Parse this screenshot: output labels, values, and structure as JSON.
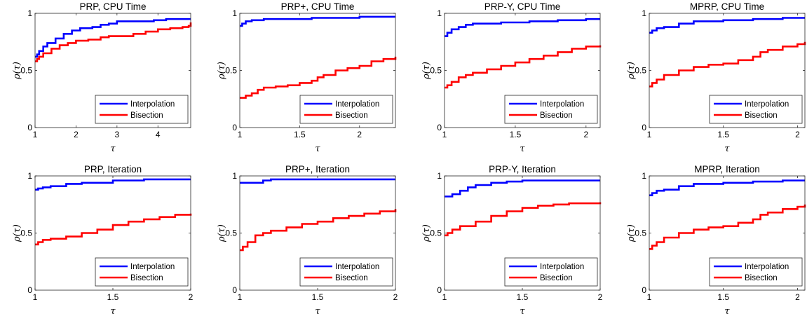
{
  "chart_data": [
    {
      "type": "line",
      "title": "PRP, CPU Time",
      "xlabel": "τ",
      "ylabel": "ρ(τ)",
      "xlim": [
        1,
        4.8
      ],
      "ylim": [
        0,
        1
      ],
      "xticks": [
        1,
        2,
        3,
        4
      ],
      "xtick_labels": [
        "1",
        "2",
        "3",
        "4"
      ],
      "yticks": [
        0,
        0.5,
        1
      ],
      "ytick_labels": [
        "0",
        "0.5",
        "1"
      ],
      "legend_position": "bottom-right",
      "series": [
        {
          "name": "Interpolation",
          "color": "#0000ff",
          "x": [
            1,
            1.05,
            1.1,
            1.2,
            1.3,
            1.5,
            1.7,
            1.9,
            2.1,
            2.4,
            2.6,
            2.8,
            3.0,
            3.5,
            3.9,
            4.2,
            4.5,
            4.8
          ],
          "y": [
            0.62,
            0.64,
            0.67,
            0.71,
            0.74,
            0.78,
            0.82,
            0.85,
            0.87,
            0.88,
            0.9,
            0.91,
            0.93,
            0.93,
            0.94,
            0.95,
            0.95,
            0.95
          ]
        },
        {
          "name": "Bisection",
          "color": "#ff0000",
          "x": [
            1,
            1.05,
            1.1,
            1.2,
            1.4,
            1.6,
            1.8,
            2.0,
            2.3,
            2.6,
            2.8,
            3.0,
            3.4,
            3.7,
            4.0,
            4.3,
            4.6,
            4.75,
            4.8
          ],
          "y": [
            0.58,
            0.6,
            0.62,
            0.65,
            0.69,
            0.72,
            0.74,
            0.76,
            0.77,
            0.79,
            0.8,
            0.8,
            0.82,
            0.84,
            0.86,
            0.87,
            0.88,
            0.89,
            0.92
          ]
        }
      ]
    },
    {
      "type": "line",
      "title": "PRP+, CPU Time",
      "xlabel": "τ",
      "ylabel": "ρ(τ)",
      "xlim": [
        1,
        2.3
      ],
      "ylim": [
        0,
        1
      ],
      "xticks": [
        1,
        1.5,
        2
      ],
      "xtick_labels": [
        "1",
        "1.5",
        "2"
      ],
      "yticks": [
        0,
        0.5,
        1
      ],
      "ytick_labels": [
        "0",
        "0.5",
        "1"
      ],
      "legend_position": "bottom-right",
      "series": [
        {
          "name": "Interpolation",
          "color": "#0000ff",
          "x": [
            1,
            1.02,
            1.05,
            1.1,
            1.2,
            1.4,
            1.6,
            1.8,
            2.0,
            2.3
          ],
          "y": [
            0.89,
            0.91,
            0.93,
            0.94,
            0.95,
            0.95,
            0.96,
            0.96,
            0.97,
            0.97
          ]
        },
        {
          "name": "Bisection",
          "color": "#ff0000",
          "x": [
            1,
            1.05,
            1.1,
            1.15,
            1.2,
            1.3,
            1.4,
            1.5,
            1.6,
            1.65,
            1.7,
            1.8,
            1.9,
            2.0,
            2.1,
            2.2,
            2.3
          ],
          "y": [
            0.26,
            0.28,
            0.3,
            0.33,
            0.35,
            0.36,
            0.37,
            0.39,
            0.41,
            0.44,
            0.46,
            0.5,
            0.52,
            0.54,
            0.58,
            0.6,
            0.62
          ]
        }
      ]
    },
    {
      "type": "line",
      "title": "PRP-Y, CPU Time",
      "xlabel": "τ",
      "ylabel": "ρ(τ)",
      "xlim": [
        1,
        2.1
      ],
      "ylim": [
        0,
        1
      ],
      "xticks": [
        1,
        1.5,
        2
      ],
      "xtick_labels": [
        "1",
        "1.5",
        "2"
      ],
      "yticks": [
        0,
        0.5,
        1
      ],
      "ytick_labels": [
        "0",
        "0.5",
        "1"
      ],
      "legend_position": "bottom-right",
      "series": [
        {
          "name": "Interpolation",
          "color": "#0000ff",
          "x": [
            1,
            1.02,
            1.05,
            1.1,
            1.15,
            1.2,
            1.4,
            1.6,
            1.8,
            2.0,
            2.1
          ],
          "y": [
            0.8,
            0.83,
            0.86,
            0.88,
            0.9,
            0.91,
            0.92,
            0.93,
            0.94,
            0.95,
            0.95
          ]
        },
        {
          "name": "Bisection",
          "color": "#ff0000",
          "x": [
            1,
            1.02,
            1.05,
            1.1,
            1.15,
            1.2,
            1.3,
            1.4,
            1.5,
            1.6,
            1.7,
            1.8,
            1.9,
            2.0,
            2.1
          ],
          "y": [
            0.35,
            0.37,
            0.4,
            0.44,
            0.46,
            0.48,
            0.51,
            0.54,
            0.57,
            0.6,
            0.63,
            0.66,
            0.69,
            0.71,
            0.72
          ]
        }
      ]
    },
    {
      "type": "line",
      "title": "MPRP, CPU Time",
      "xlabel": "τ",
      "ylabel": "ρ(τ)",
      "xlim": [
        1,
        2.05
      ],
      "ylim": [
        0,
        1
      ],
      "xticks": [
        1,
        1.5,
        2
      ],
      "xtick_labels": [
        "1",
        "1.5",
        "2"
      ],
      "yticks": [
        0,
        0.5,
        1
      ],
      "ytick_labels": [
        "0",
        "0.5",
        "1"
      ],
      "legend_position": "bottom-right",
      "series": [
        {
          "name": "Interpolation",
          "color": "#0000ff",
          "x": [
            1,
            1.02,
            1.05,
            1.1,
            1.2,
            1.3,
            1.5,
            1.7,
            1.9,
            2.05
          ],
          "y": [
            0.83,
            0.85,
            0.87,
            0.88,
            0.91,
            0.93,
            0.94,
            0.95,
            0.96,
            0.96
          ]
        },
        {
          "name": "Bisection",
          "color": "#ff0000",
          "x": [
            1,
            1.02,
            1.05,
            1.1,
            1.2,
            1.3,
            1.4,
            1.5,
            1.6,
            1.7,
            1.75,
            1.8,
            1.9,
            2.0,
            2.05
          ],
          "y": [
            0.36,
            0.39,
            0.42,
            0.46,
            0.5,
            0.53,
            0.55,
            0.56,
            0.59,
            0.62,
            0.66,
            0.68,
            0.71,
            0.73,
            0.75
          ]
        }
      ]
    },
    {
      "type": "line",
      "title": "PRP, Iteration",
      "xlabel": "τ",
      "ylabel": "ρ(τ)",
      "xlim": [
        1,
        2
      ],
      "ylim": [
        0,
        1
      ],
      "xticks": [
        1,
        1.5,
        2
      ],
      "xtick_labels": [
        "1",
        "1.5",
        "2"
      ],
      "yticks": [
        0,
        0.5,
        1
      ],
      "ytick_labels": [
        "0",
        "0.5",
        "1"
      ],
      "legend_position": "bottom-right",
      "series": [
        {
          "name": "Interpolation",
          "color": "#0000ff",
          "x": [
            1,
            1.02,
            1.05,
            1.1,
            1.2,
            1.3,
            1.5,
            1.7,
            1.9,
            2.0
          ],
          "y": [
            0.88,
            0.89,
            0.9,
            0.91,
            0.93,
            0.94,
            0.96,
            0.97,
            0.97,
            0.97
          ]
        },
        {
          "name": "Bisection",
          "color": "#ff0000",
          "x": [
            1,
            1.02,
            1.05,
            1.1,
            1.2,
            1.3,
            1.4,
            1.5,
            1.6,
            1.7,
            1.8,
            1.9,
            2.0
          ],
          "y": [
            0.4,
            0.42,
            0.44,
            0.45,
            0.47,
            0.5,
            0.53,
            0.57,
            0.6,
            0.62,
            0.64,
            0.66,
            0.67
          ]
        }
      ]
    },
    {
      "type": "line",
      "title": "PRP+, Iteration",
      "xlabel": "τ",
      "ylabel": "ρ(τ)",
      "xlim": [
        1,
        2
      ],
      "ylim": [
        0,
        1
      ],
      "xticks": [
        1,
        1.5,
        2
      ],
      "xtick_labels": [
        "1",
        "1.5",
        "2"
      ],
      "yticks": [
        0,
        0.5,
        1
      ],
      "ytick_labels": [
        "0",
        "0.5",
        "1"
      ],
      "legend_position": "bottom-right",
      "series": [
        {
          "name": "Interpolation",
          "color": "#0000ff",
          "x": [
            1,
            1.05,
            1.1,
            1.15,
            1.2,
            1.5,
            1.8,
            2.0
          ],
          "y": [
            0.94,
            0.94,
            0.94,
            0.96,
            0.97,
            0.97,
            0.97,
            0.97
          ]
        },
        {
          "name": "Bisection",
          "color": "#ff0000",
          "x": [
            1,
            1.02,
            1.05,
            1.1,
            1.15,
            1.2,
            1.3,
            1.4,
            1.5,
            1.6,
            1.7,
            1.8,
            1.9,
            2.0
          ],
          "y": [
            0.35,
            0.38,
            0.42,
            0.48,
            0.5,
            0.52,
            0.55,
            0.58,
            0.6,
            0.63,
            0.65,
            0.67,
            0.69,
            0.71
          ]
        }
      ]
    },
    {
      "type": "line",
      "title": "PRP-Y, Iteration",
      "xlabel": "τ",
      "ylabel": "ρ(τ)",
      "xlim": [
        1,
        2
      ],
      "ylim": [
        0,
        1
      ],
      "xticks": [
        1,
        1.5,
        2
      ],
      "xtick_labels": [
        "1",
        "1.5",
        "2"
      ],
      "yticks": [
        0,
        0.5,
        1
      ],
      "ytick_labels": [
        "0",
        "0.5",
        "1"
      ],
      "legend_position": "bottom-right",
      "series": [
        {
          "name": "Interpolation",
          "color": "#0000ff",
          "x": [
            1,
            1.05,
            1.1,
            1.15,
            1.2,
            1.3,
            1.4,
            1.5,
            1.7,
            2.0
          ],
          "y": [
            0.82,
            0.84,
            0.87,
            0.9,
            0.92,
            0.94,
            0.95,
            0.96,
            0.96,
            0.96
          ]
        },
        {
          "name": "Bisection",
          "color": "#ff0000",
          "x": [
            1,
            1.02,
            1.05,
            1.1,
            1.2,
            1.3,
            1.4,
            1.5,
            1.6,
            1.7,
            1.8,
            1.9,
            2.0
          ],
          "y": [
            0.48,
            0.5,
            0.53,
            0.56,
            0.6,
            0.65,
            0.69,
            0.72,
            0.74,
            0.75,
            0.76,
            0.76,
            0.77
          ]
        }
      ]
    },
    {
      "type": "line",
      "title": "MPRP, Iteration",
      "xlabel": "τ",
      "ylabel": "ρ(τ)",
      "xlim": [
        1,
        2.05
      ],
      "ylim": [
        0,
        1
      ],
      "xticks": [
        1,
        1.5,
        2
      ],
      "xtick_labels": [
        "1",
        "1.5",
        "2"
      ],
      "yticks": [
        0,
        0.5,
        1
      ],
      "ytick_labels": [
        "0",
        "0.5",
        "1"
      ],
      "legend_position": "bottom-right",
      "series": [
        {
          "name": "Interpolation",
          "color": "#0000ff",
          "x": [
            1,
            1.02,
            1.05,
            1.1,
            1.2,
            1.3,
            1.5,
            1.7,
            1.9,
            2.05
          ],
          "y": [
            0.83,
            0.85,
            0.87,
            0.88,
            0.91,
            0.93,
            0.94,
            0.95,
            0.96,
            0.96
          ]
        },
        {
          "name": "Bisection",
          "color": "#ff0000",
          "x": [
            1,
            1.02,
            1.05,
            1.1,
            1.2,
            1.3,
            1.4,
            1.5,
            1.6,
            1.7,
            1.75,
            1.8,
            1.9,
            2.0,
            2.05
          ],
          "y": [
            0.36,
            0.39,
            0.42,
            0.46,
            0.5,
            0.53,
            0.55,
            0.56,
            0.59,
            0.62,
            0.66,
            0.68,
            0.71,
            0.73,
            0.75
          ]
        }
      ]
    }
  ]
}
